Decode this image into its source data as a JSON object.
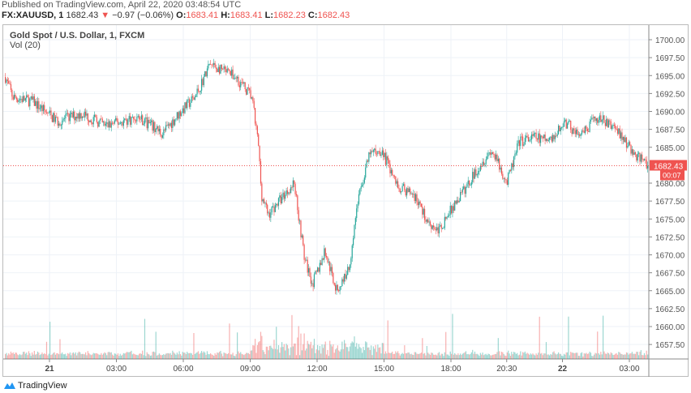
{
  "header": {
    "published": "Published on TradingView.com, April 22, 2020 03:48:54 UTC",
    "symbol": "FX:XAUUSD, 1",
    "last": "1682.43",
    "change": "−0.97 (−0.06%)",
    "open_label": "O:",
    "open": "1683.41",
    "high_label": "H:",
    "high": "1683.41",
    "low_label": "L:",
    "low": "1682.23",
    "close_label": "C:",
    "close": "1682.43"
  },
  "legend": {
    "title": "Gold Spot / U.S. Dollar, 1, FXCM",
    "indicator": "Vol (20)"
  },
  "footer": {
    "brand": "TradingView"
  },
  "colors": {
    "up": "#26a69a",
    "down": "#ef5350",
    "grid": "#eef2f7",
    "price_line": "#ef5350"
  },
  "chart_data": {
    "type": "candlestick",
    "interval": "1 minute",
    "grid": true,
    "y_ticks": [
      "1700.00",
      "1697.50",
      "1695.00",
      "1692.50",
      "1690.00",
      "1687.50",
      "1685.00",
      "1680.00",
      "1677.50",
      "1675.00",
      "1672.50",
      "1670.00",
      "1667.50",
      "1665.00",
      "1662.50",
      "1660.00",
      "1657.50"
    ],
    "ylim": [
      1656,
      1705
    ],
    "x_ticks": [
      {
        "label": "21",
        "time": "04-21 00:00",
        "bold": true
      },
      {
        "label": "03:00",
        "time": "04-21 03:00"
      },
      {
        "label": "06:00",
        "time": "04-21 06:00"
      },
      {
        "label": "09:00",
        "time": "04-21 09:00"
      },
      {
        "label": "12:00",
        "time": "04-21 12:00"
      },
      {
        "label": "15:00",
        "time": "04-21 15:00"
      },
      {
        "label": "18:00",
        "time": "04-21 18:00"
      },
      {
        "label": "20:30",
        "time": "04-21 20:30"
      },
      {
        "label": "22",
        "time": "04-22 00:00",
        "bold": true
      },
      {
        "label": "03:00",
        "time": "04-22 03:00"
      }
    ],
    "last_price": 1682.43,
    "last_price_label": "1682.43",
    "countdown": "00:07",
    "price_path": [
      [
        "04-20 22:00",
        1694.8
      ],
      [
        "04-20 22:20",
        1692.0
      ],
      [
        "04-20 23:14",
        1691.4
      ],
      [
        "04-21 00:20",
        1688.6
      ],
      [
        "04-21 01:25",
        1689.7
      ],
      [
        "04-21 02:30",
        1688.0
      ],
      [
        "04-21 03:58",
        1689.2
      ],
      [
        "04-21 05:03",
        1686.9
      ],
      [
        "04-21 05:47",
        1689.7
      ],
      [
        "04-21 06:30",
        1692.0
      ],
      [
        "04-21 07:10",
        1696.5
      ],
      [
        "04-21 08:20",
        1694.8
      ],
      [
        "04-21 09:03",
        1692.0
      ],
      [
        "04-21 09:21",
        1685.2
      ],
      [
        "04-21 09:29",
        1678.4
      ],
      [
        "04-21 09:47",
        1675.6
      ],
      [
        "04-21 10:30",
        1678.4
      ],
      [
        "04-21 10:57",
        1680.1
      ],
      [
        "04-21 11:25",
        1669.4
      ],
      [
        "04-21 11:47",
        1666.0
      ],
      [
        "04-21 12:20",
        1670.5
      ],
      [
        "04-21 12:52",
        1664.9
      ],
      [
        "04-21 13:25",
        1668.2
      ],
      [
        "04-21 13:47",
        1677.3
      ],
      [
        "04-21 14:20",
        1684.1
      ],
      [
        "04-21 14:52",
        1684.6
      ],
      [
        "04-21 15:36",
        1679.5
      ],
      [
        "04-21 16:20",
        1678.4
      ],
      [
        "04-21 16:52",
        1675.0
      ],
      [
        "04-21 17:25",
        1673.3
      ],
      [
        "04-21 17:58",
        1676.2
      ],
      [
        "04-21 18:41",
        1679.5
      ],
      [
        "04-21 19:14",
        1682.4
      ],
      [
        "04-21 19:47",
        1684.6
      ],
      [
        "04-21 20:30",
        1680.1
      ],
      [
        "04-21 22:03",
        1685.8
      ],
      [
        "04-21 22:47",
        1686.4
      ],
      [
        "04-21 23:30",
        1685.8
      ],
      [
        "04-22 00:04",
        1688.6
      ],
      [
        "04-22 00:48",
        1686.4
      ],
      [
        "04-22 01:31",
        1689.2
      ],
      [
        "04-22 02:26",
        1687.5
      ],
      [
        "04-22 03:10",
        1684.1
      ],
      [
        "04-22 03:48",
        1682.43
      ]
    ]
  }
}
